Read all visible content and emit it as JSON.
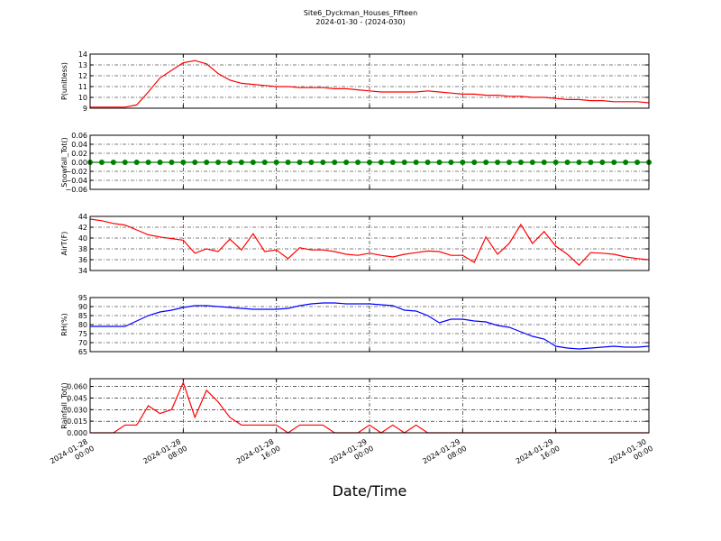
{
  "title": "Site6_Dyckman_Houses_Fifteen",
  "subtitle": "2024-01-30 - (2024-030)",
  "xlabel": "Date/Time",
  "chart_data": [
    {
      "type": "line",
      "ylabel": "P(unitless)",
      "xlim": [
        "2024-01-28 00:00",
        "2024-01-30 00:00"
      ],
      "xticks": [
        "2024-01-28 00:00",
        "2024-01-28 08:00",
        "2024-01-28 16:00",
        "2024-01-29 00:00",
        "2024-01-29 08:00",
        "2024-01-29 16:00",
        "2024-01-30 00:00"
      ],
      "ylim": [
        9,
        14
      ],
      "yticks": [
        9,
        10,
        11,
        12,
        13,
        14
      ],
      "grid": true,
      "x": [
        "2024-01-28 00:00",
        "2024-01-28 01:00",
        "2024-01-28 02:00",
        "2024-01-28 03:00",
        "2024-01-28 04:00",
        "2024-01-28 05:00",
        "2024-01-28 06:00",
        "2024-01-28 07:00",
        "2024-01-28 08:00",
        "2024-01-28 09:00",
        "2024-01-28 10:00",
        "2024-01-28 11:00",
        "2024-01-28 12:00",
        "2024-01-28 13:00",
        "2024-01-28 14:00",
        "2024-01-28 15:00",
        "2024-01-28 16:00",
        "2024-01-28 17:00",
        "2024-01-28 18:00",
        "2024-01-28 19:00",
        "2024-01-28 20:00",
        "2024-01-28 21:00",
        "2024-01-28 22:00",
        "2024-01-28 23:00",
        "2024-01-29 00:00",
        "2024-01-29 01:00",
        "2024-01-29 02:00",
        "2024-01-29 03:00",
        "2024-01-29 04:00",
        "2024-01-29 05:00",
        "2024-01-29 06:00",
        "2024-01-29 07:00",
        "2024-01-29 08:00",
        "2024-01-29 09:00",
        "2024-01-29 10:00",
        "2024-01-29 11:00",
        "2024-01-29 12:00",
        "2024-01-29 13:00",
        "2024-01-29 14:00",
        "2024-01-29 15:00",
        "2024-01-29 16:00",
        "2024-01-29 17:00",
        "2024-01-29 18:00",
        "2024-01-29 19:00",
        "2024-01-29 20:00",
        "2024-01-29 21:00",
        "2024-01-29 22:00",
        "2024-01-29 23:00",
        "2024-01-30 00:00"
      ],
      "series": [
        {
          "color": "#ff0000",
          "values": [
            9.1,
            9.1,
            9.1,
            9.1,
            9.3,
            10.5,
            11.8,
            12.5,
            13.2,
            13.4,
            13.1,
            12.2,
            11.6,
            11.3,
            11.2,
            11.1,
            11.0,
            11.0,
            10.9,
            10.9,
            10.9,
            10.8,
            10.8,
            10.7,
            10.6,
            10.5,
            10.5,
            10.5,
            10.5,
            10.6,
            10.5,
            10.4,
            10.3,
            10.3,
            10.2,
            10.2,
            10.1,
            10.1,
            10.0,
            10.0,
            9.9,
            9.8,
            9.8,
            9.7,
            9.7,
            9.6,
            9.6,
            9.6,
            9.5
          ]
        }
      ]
    },
    {
      "type": "line",
      "ylabel": "Snowfall_Tot()",
      "xlim": [
        "2024-01-28 00:00",
        "2024-01-30 00:00"
      ],
      "xticks": [
        "2024-01-28 00:00",
        "2024-01-28 08:00",
        "2024-01-28 16:00",
        "2024-01-29 00:00",
        "2024-01-29 08:00",
        "2024-01-29 16:00",
        "2024-01-30 00:00"
      ],
      "ylim": [
        -0.06,
        0.06
      ],
      "yticks": [
        {
          "value": -0.06,
          "label": "−0.06"
        },
        {
          "value": -0.04,
          "label": "−0.04"
        },
        {
          "value": -0.02,
          "label": "−0.02"
        },
        {
          "value": 0,
          "label": "0.00"
        },
        {
          "value": 0.02,
          "label": "0.02"
        },
        {
          "value": 0.04,
          "label": "0.04"
        },
        {
          "value": 0.06,
          "label": "0.06"
        }
      ],
      "grid": true,
      "x": [
        "2024-01-28 00:00",
        "2024-01-28 01:00",
        "2024-01-28 02:00",
        "2024-01-28 03:00",
        "2024-01-28 04:00",
        "2024-01-28 05:00",
        "2024-01-28 06:00",
        "2024-01-28 07:00",
        "2024-01-28 08:00",
        "2024-01-28 09:00",
        "2024-01-28 10:00",
        "2024-01-28 11:00",
        "2024-01-28 12:00",
        "2024-01-28 13:00",
        "2024-01-28 14:00",
        "2024-01-28 15:00",
        "2024-01-28 16:00",
        "2024-01-28 17:00",
        "2024-01-28 18:00",
        "2024-01-28 19:00",
        "2024-01-28 20:00",
        "2024-01-28 21:00",
        "2024-01-28 22:00",
        "2024-01-28 23:00",
        "2024-01-29 00:00",
        "2024-01-29 01:00",
        "2024-01-29 02:00",
        "2024-01-29 03:00",
        "2024-01-29 04:00",
        "2024-01-29 05:00",
        "2024-01-29 06:00",
        "2024-01-29 07:00",
        "2024-01-29 08:00",
        "2024-01-29 09:00",
        "2024-01-29 10:00",
        "2024-01-29 11:00",
        "2024-01-29 12:00",
        "2024-01-29 13:00",
        "2024-01-29 14:00",
        "2024-01-29 15:00",
        "2024-01-29 16:00",
        "2024-01-29 17:00",
        "2024-01-29 18:00",
        "2024-01-29 19:00",
        "2024-01-29 20:00",
        "2024-01-29 21:00",
        "2024-01-29 22:00",
        "2024-01-29 23:00",
        "2024-01-30 00:00"
      ],
      "series": [
        {
          "color": "#008000",
          "markers": true,
          "values": [
            0,
            0,
            0,
            0,
            0,
            0,
            0,
            0,
            0,
            0,
            0,
            0,
            0,
            0,
            0,
            0,
            0,
            0,
            0,
            0,
            0,
            0,
            0,
            0,
            0,
            0,
            0,
            0,
            0,
            0,
            0,
            0,
            0,
            0,
            0,
            0,
            0,
            0,
            0,
            0,
            0,
            0,
            0,
            0,
            0,
            0,
            0,
            0,
            0
          ]
        }
      ]
    },
    {
      "type": "line",
      "ylabel": "AirT(F)",
      "xlim": [
        "2024-01-28 00:00",
        "2024-01-30 00:00"
      ],
      "xticks": [
        "2024-01-28 00:00",
        "2024-01-28 08:00",
        "2024-01-28 16:00",
        "2024-01-29 00:00",
        "2024-01-29 08:00",
        "2024-01-29 16:00",
        "2024-01-30 00:00"
      ],
      "ylim": [
        34,
        44
      ],
      "yticks": [
        34,
        36,
        38,
        40,
        42,
        44
      ],
      "grid": true,
      "x": [
        "2024-01-28 00:00",
        "2024-01-28 01:00",
        "2024-01-28 02:00",
        "2024-01-28 03:00",
        "2024-01-28 04:00",
        "2024-01-28 05:00",
        "2024-01-28 06:00",
        "2024-01-28 07:00",
        "2024-01-28 08:00",
        "2024-01-28 09:00",
        "2024-01-28 10:00",
        "2024-01-28 11:00",
        "2024-01-28 12:00",
        "2024-01-28 13:00",
        "2024-01-28 14:00",
        "2024-01-28 15:00",
        "2024-01-28 16:00",
        "2024-01-28 17:00",
        "2024-01-28 18:00",
        "2024-01-28 19:00",
        "2024-01-28 20:00",
        "2024-01-28 21:00",
        "2024-01-28 22:00",
        "2024-01-28 23:00",
        "2024-01-29 00:00",
        "2024-01-29 01:00",
        "2024-01-29 02:00",
        "2024-01-29 03:00",
        "2024-01-29 04:00",
        "2024-01-29 05:00",
        "2024-01-29 06:00",
        "2024-01-29 07:00",
        "2024-01-29 08:00",
        "2024-01-29 09:00",
        "2024-01-29 10:00",
        "2024-01-29 11:00",
        "2024-01-29 12:00",
        "2024-01-29 13:00",
        "2024-01-29 14:00",
        "2024-01-29 15:00",
        "2024-01-29 16:00",
        "2024-01-29 17:00",
        "2024-01-29 18:00",
        "2024-01-29 19:00",
        "2024-01-29 20:00",
        "2024-01-29 21:00",
        "2024-01-29 22:00",
        "2024-01-29 23:00",
        "2024-01-30 00:00"
      ],
      "series": [
        {
          "color": "#ff0000",
          "values": [
            43.5,
            43.2,
            42.7,
            42.4,
            41.5,
            40.6,
            40.2,
            39.9,
            39.6,
            37.2,
            38.0,
            37.5,
            39.8,
            37.8,
            40.8,
            37.5,
            37.8,
            36.2,
            38.2,
            37.8,
            37.8,
            37.5,
            37.0,
            36.8,
            37.2,
            36.8,
            36.5,
            37.0,
            37.3,
            37.6,
            37.5,
            36.8,
            36.8,
            35.5,
            40.2,
            37.0,
            39.0,
            42.5,
            39.0,
            41.2,
            38.5,
            37.0,
            35.0,
            37.3,
            37.2,
            37.0,
            36.5,
            36.2,
            36.0
          ]
        }
      ]
    },
    {
      "type": "line",
      "ylabel": "RH(%)",
      "xlim": [
        "2024-01-28 00:00",
        "2024-01-30 00:00"
      ],
      "xticks": [
        "2024-01-28 00:00",
        "2024-01-28 08:00",
        "2024-01-28 16:00",
        "2024-01-29 00:00",
        "2024-01-29 08:00",
        "2024-01-29 16:00",
        "2024-01-30 00:00"
      ],
      "ylim": [
        65,
        95
      ],
      "yticks": [
        65,
        70,
        75,
        80,
        85,
        90,
        95
      ],
      "grid": true,
      "x": [
        "2024-01-28 00:00",
        "2024-01-28 01:00",
        "2024-01-28 02:00",
        "2024-01-28 03:00",
        "2024-01-28 04:00",
        "2024-01-28 05:00",
        "2024-01-28 06:00",
        "2024-01-28 07:00",
        "2024-01-28 08:00",
        "2024-01-28 09:00",
        "2024-01-28 10:00",
        "2024-01-28 11:00",
        "2024-01-28 12:00",
        "2024-01-28 13:00",
        "2024-01-28 14:00",
        "2024-01-28 15:00",
        "2024-01-28 16:00",
        "2024-01-28 17:00",
        "2024-01-28 18:00",
        "2024-01-28 19:00",
        "2024-01-28 20:00",
        "2024-01-28 21:00",
        "2024-01-28 22:00",
        "2024-01-28 23:00",
        "2024-01-29 00:00",
        "2024-01-29 01:00",
        "2024-01-29 02:00",
        "2024-01-29 03:00",
        "2024-01-29 04:00",
        "2024-01-29 05:00",
        "2024-01-29 06:00",
        "2024-01-29 07:00",
        "2024-01-29 08:00",
        "2024-01-29 09:00",
        "2024-01-29 10:00",
        "2024-01-29 11:00",
        "2024-01-29 12:00",
        "2024-01-29 13:00",
        "2024-01-29 14:00",
        "2024-01-29 15:00",
        "2024-01-29 16:00",
        "2024-01-29 17:00",
        "2024-01-29 18:00",
        "2024-01-29 19:00",
        "2024-01-29 20:00",
        "2024-01-29 21:00",
        "2024-01-29 22:00",
        "2024-01-29 23:00",
        "2024-01-30 00:00"
      ],
      "series": [
        {
          "color": "#0000ff",
          "values": [
            79,
            79,
            79,
            79,
            82,
            85,
            87,
            88,
            89.5,
            90.5,
            90.5,
            90,
            89.5,
            89,
            88.5,
            88.5,
            88.5,
            89,
            90.5,
            91.5,
            92,
            92,
            91.5,
            91.5,
            91.5,
            91,
            90.5,
            88,
            87.5,
            85,
            81,
            83,
            83,
            82,
            81.5,
            79.5,
            78.5,
            76,
            73.5,
            72,
            68,
            67,
            66.5,
            67,
            67.5,
            68,
            67.5,
            67.5,
            68
          ]
        }
      ]
    },
    {
      "type": "line",
      "ylabel": "Rainfall_Tot()",
      "xlim": [
        "2024-01-28 00:00",
        "2024-01-30 00:00"
      ],
      "xticks": [
        {
          "value": "2024-01-28 00:00",
          "label": "2024-01-28\n00:00"
        },
        {
          "value": "2024-01-28 08:00",
          "label": "2024-01-28\n08:00"
        },
        {
          "value": "2024-01-28 16:00",
          "label": "2024-01-28\n16:00"
        },
        {
          "value": "2024-01-29 00:00",
          "label": "2024-01-29\n00:00"
        },
        {
          "value": "2024-01-29 08:00",
          "label": "2024-01-29\n08:00"
        },
        {
          "value": "2024-01-29 16:00",
          "label": "2024-01-29\n16:00"
        },
        {
          "value": "2024-01-30 00:00",
          "label": "2024-01-30\n00:00"
        }
      ],
      "ylim": [
        0,
        0.07
      ],
      "yticks": [
        {
          "value": 0,
          "label": "0.000"
        },
        {
          "value": 0.015,
          "label": "0.015"
        },
        {
          "value": 0.03,
          "label": "0.030"
        },
        {
          "value": 0.045,
          "label": "0.045"
        },
        {
          "value": 0.06,
          "label": "0.060"
        }
      ],
      "grid": true,
      "x": [
        "2024-01-28 00:00",
        "2024-01-28 01:00",
        "2024-01-28 02:00",
        "2024-01-28 03:00",
        "2024-01-28 04:00",
        "2024-01-28 05:00",
        "2024-01-28 06:00",
        "2024-01-28 07:00",
        "2024-01-28 08:00",
        "2024-01-28 09:00",
        "2024-01-28 10:00",
        "2024-01-28 11:00",
        "2024-01-28 12:00",
        "2024-01-28 13:00",
        "2024-01-28 14:00",
        "2024-01-28 15:00",
        "2024-01-28 16:00",
        "2024-01-28 17:00",
        "2024-01-28 18:00",
        "2024-01-28 19:00",
        "2024-01-28 20:00",
        "2024-01-28 21:00",
        "2024-01-28 22:00",
        "2024-01-28 23:00",
        "2024-01-29 00:00",
        "2024-01-29 01:00",
        "2024-01-29 02:00",
        "2024-01-29 03:00",
        "2024-01-29 04:00",
        "2024-01-29 05:00",
        "2024-01-29 06:00",
        "2024-01-29 07:00",
        "2024-01-29 08:00",
        "2024-01-29 09:00",
        "2024-01-29 10:00",
        "2024-01-29 11:00",
        "2024-01-29 12:00",
        "2024-01-29 13:00",
        "2024-01-29 14:00",
        "2024-01-29 15:00",
        "2024-01-29 16:00",
        "2024-01-29 17:00",
        "2024-01-29 18:00",
        "2024-01-29 19:00",
        "2024-01-29 20:00",
        "2024-01-29 21:00",
        "2024-01-29 22:00",
        "2024-01-29 23:00",
        "2024-01-30 00:00"
      ],
      "series": [
        {
          "color": "#ff0000",
          "values": [
            0,
            0,
            0,
            0.01,
            0.01,
            0.035,
            0.025,
            0.03,
            0.065,
            0.02,
            0.055,
            0.04,
            0.02,
            0.01,
            0.01,
            0.01,
            0.01,
            0,
            0.01,
            0.01,
            0.01,
            0,
            0,
            0,
            0.01,
            0,
            0.01,
            0,
            0.01,
            0,
            0,
            0,
            0,
            0,
            0,
            0,
            0,
            0,
            0,
            0,
            0,
            0,
            0,
            0,
            0,
            0,
            0,
            0,
            0
          ]
        }
      ]
    }
  ]
}
